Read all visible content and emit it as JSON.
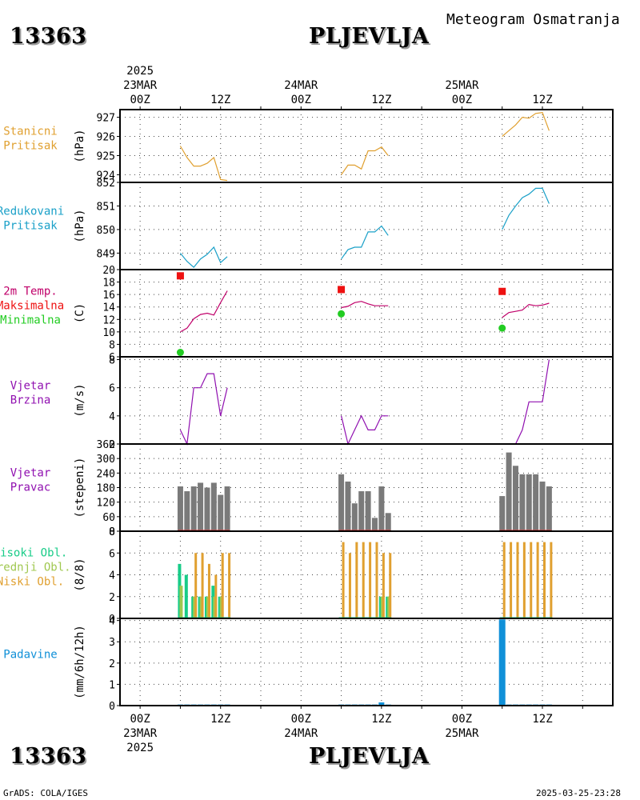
{
  "header": {
    "station_id": "13363",
    "station_name": "PLJEVLJA",
    "product": "Meteogram Osmatranja"
  },
  "footer": {
    "software": "GrADS: COLA/IGES",
    "timestamp": "2025-03-25-23:28"
  },
  "time_axis": {
    "top_year": "2025",
    "bottom_year": "2025",
    "hour_labels": [
      "00Z",
      "12Z",
      "00Z",
      "12Z",
      "00Z",
      "12Z"
    ],
    "hour_positions_h": [
      0,
      12,
      24,
      36,
      48,
      60
    ],
    "date_labels": [
      {
        "label": "23MAR",
        "hour": 0
      },
      {
        "label": "24MAR",
        "hour": 24
      },
      {
        "label": "25MAR",
        "hour": 48
      }
    ],
    "range_h": [
      -3,
      70.5
    ]
  },
  "colors": {
    "pressure": "#e0a030",
    "reduced": "#1aa0c8",
    "temp": "#c0006a",
    "tmax": "#ee1111",
    "tmin": "#22cc22",
    "wind": "#9010b0",
    "winddir_bar": "#7a7a7a",
    "high_cloud": "#18cc88",
    "mid_cloud": "#a0c850",
    "low_cloud": "#e0a030",
    "precip": "#1090d8"
  },
  "chart_data": [
    {
      "type": "line",
      "id": "station_pressure",
      "labels": [
        "Stanicni",
        "Pritisak"
      ],
      "ylabel": "(hPa)",
      "ylim": [
        923.6,
        927.4
      ],
      "yticks": [
        924,
        925,
        926,
        927
      ],
      "series": [
        {
          "x": [
            6,
            7,
            8,
            9,
            10,
            11,
            12,
            13
          ],
          "y": [
            925.5,
            924.9,
            924.45,
            924.45,
            924.6,
            924.9,
            923.75,
            923.7
          ]
        },
        {
          "x": [
            30,
            31,
            32,
            33,
            34,
            35,
            36,
            37
          ],
          "y": [
            924.0,
            924.5,
            924.5,
            924.3,
            925.25,
            925.25,
            925.45,
            925.0
          ]
        },
        {
          "x": [
            54,
            55,
            56,
            57,
            58,
            59,
            60,
            61
          ],
          "y": [
            926.0,
            926.3,
            926.6,
            927.0,
            926.95,
            927.2,
            927.25,
            926.3
          ]
        }
      ]
    },
    {
      "type": "line",
      "id": "reduced_pressure",
      "labels": [
        "Redukovani",
        "Pritisak"
      ],
      "ylabel": "(hPa)",
      "ylim": [
        848.3,
        852.0
      ],
      "yticks": [
        849,
        850,
        851,
        852
      ],
      "series": [
        {
          "x": [
            6,
            7,
            8,
            9,
            10,
            11,
            12,
            13
          ],
          "y": [
            849.0,
            848.65,
            848.4,
            848.75,
            848.95,
            849.25,
            848.6,
            848.85
          ]
        },
        {
          "x": [
            30,
            31,
            32,
            33,
            34,
            35,
            36,
            37
          ],
          "y": [
            848.75,
            849.15,
            849.25,
            849.25,
            849.9,
            849.9,
            850.15,
            849.75
          ]
        },
        {
          "x": [
            54,
            55,
            56,
            57,
            58,
            59,
            60,
            61
          ],
          "y": [
            850.0,
            850.6,
            851.0,
            851.35,
            851.5,
            851.75,
            851.75,
            851.1
          ]
        }
      ]
    },
    {
      "type": "line",
      "id": "temperature",
      "labels": [
        "2m Temp.",
        "Maksimalna",
        "Minimalna"
      ],
      "ylabel": "(C)",
      "ylim": [
        6,
        20
      ],
      "yticks": [
        6,
        8,
        10,
        12,
        14,
        16,
        18,
        20
      ],
      "series": [
        {
          "name": "2m Temp.",
          "x": [
            6,
            7,
            8,
            9,
            10,
            11,
            12,
            13
          ],
          "y": [
            10.0,
            10.6,
            12.1,
            12.8,
            13.0,
            12.7,
            14.7,
            16.6
          ]
        },
        {
          "name": "2m Temp.",
          "x": [
            30,
            31,
            32,
            33,
            34,
            35,
            36,
            37
          ],
          "y": [
            13.9,
            14.1,
            14.7,
            14.9,
            14.5,
            14.2,
            14.2,
            14.2
          ]
        },
        {
          "name": "2m Temp.",
          "x": [
            54,
            55,
            56,
            57,
            58,
            59,
            60,
            61
          ],
          "y": [
            12.3,
            13.1,
            13.3,
            13.5,
            14.4,
            14.2,
            14.3,
            14.6
          ]
        }
      ],
      "maxima": [
        {
          "x": 6,
          "y": 19.0
        },
        {
          "x": 30,
          "y": 16.8
        },
        {
          "x": 54,
          "y": 16.5
        }
      ],
      "minima": [
        {
          "x": 6,
          "y": 6.7
        },
        {
          "x": 30,
          "y": 12.9
        },
        {
          "x": 54,
          "y": 10.6
        }
      ]
    },
    {
      "type": "line",
      "id": "wind_speed",
      "labels": [
        "Vjetar",
        "Brzina"
      ],
      "ylabel": "(m/s)",
      "ylim": [
        2,
        8.2
      ],
      "yticks": [
        2,
        4,
        6,
        8
      ],
      "series": [
        {
          "x": [
            6,
            7,
            8,
            9,
            10,
            11,
            12,
            13
          ],
          "y": [
            3,
            2,
            6,
            6,
            7,
            7,
            4,
            6
          ]
        },
        {
          "x": [
            30,
            31,
            32,
            33,
            34,
            35,
            36,
            37
          ],
          "y": [
            4,
            2,
            3,
            4,
            3,
            3,
            4,
            4
          ]
        },
        {
          "x": [
            54,
            55,
            56,
            57,
            58,
            59,
            60,
            61
          ],
          "y": [
            2,
            2,
            2,
            3,
            5,
            5,
            5,
            8
          ]
        }
      ]
    },
    {
      "type": "bar",
      "id": "wind_direction",
      "labels": [
        "Vjetar",
        "Pravac"
      ],
      "ylabel": "(stepeni)",
      "ylim": [
        0,
        360
      ],
      "yticks": [
        0,
        60,
        120,
        180,
        240,
        300,
        360
      ],
      "x": [
        6,
        7,
        8,
        9,
        10,
        11,
        12,
        13,
        30,
        31,
        32,
        33,
        34,
        35,
        36,
        37,
        54,
        55,
        56,
        57,
        58,
        59,
        60,
        61
      ],
      "values": [
        185,
        165,
        185,
        200,
        180,
        200,
        150,
        185,
        235,
        205,
        115,
        165,
        165,
        55,
        185,
        75,
        145,
        325,
        270,
        235,
        235,
        235,
        205,
        185
      ]
    },
    {
      "type": "bar",
      "id": "cloud_cover",
      "labels": [
        "Visoki Obl.",
        "Srednji Obl.",
        "Niski Obl."
      ],
      "ylabel": "(8/8)",
      "ylim": [
        0,
        8
      ],
      "yticks": [
        0,
        2,
        4,
        6,
        8
      ],
      "x": [
        6,
        7,
        8,
        9,
        10,
        11,
        12,
        13,
        30,
        31,
        32,
        33,
        34,
        35,
        36,
        37,
        54,
        55,
        56,
        57,
        58,
        59,
        60,
        61
      ],
      "series": [
        {
          "name": "Visoki Obl.",
          "values": [
            5,
            4,
            2,
            2,
            2,
            3,
            2,
            0,
            0,
            0,
            0,
            0,
            0,
            0,
            2,
            2,
            0,
            0,
            0,
            0,
            0,
            0,
            0,
            0
          ]
        },
        {
          "name": "Srednji Obl.",
          "values": [
            3,
            0,
            2,
            2,
            2,
            2,
            2,
            0,
            0,
            0,
            0,
            0,
            0,
            0,
            2,
            2,
            0,
            0,
            0,
            0,
            0,
            0,
            0,
            0
          ]
        },
        {
          "name": "Niski Obl.",
          "values": [
            0,
            0,
            6,
            6,
            5,
            4,
            6,
            6,
            7,
            6,
            7,
            7,
            7,
            7,
            6,
            6,
            7,
            7,
            7,
            7,
            7,
            7,
            7,
            7
          ]
        }
      ]
    },
    {
      "type": "bar",
      "id": "precipitation",
      "labels": [
        "Padavine"
      ],
      "ylabel": "(mm/6h/12h)",
      "ylim": [
        0,
        4.1
      ],
      "yticks": [
        0,
        1,
        2,
        3,
        4
      ],
      "x": [
        6,
        7,
        8,
        9,
        10,
        11,
        12,
        13,
        30,
        31,
        32,
        33,
        34,
        35,
        36,
        37,
        54,
        55,
        56,
        57,
        58,
        59,
        60,
        61
      ],
      "values": [
        0.05,
        0.05,
        0.05,
        0.05,
        0.05,
        0.05,
        0.05,
        0.05,
        0.05,
        0.05,
        0.05,
        0.05,
        0.05,
        0.05,
        0.15,
        0.05,
        4.05,
        0.05,
        0.05,
        0.05,
        0.05,
        0.05,
        0.05,
        0.05
      ]
    }
  ]
}
